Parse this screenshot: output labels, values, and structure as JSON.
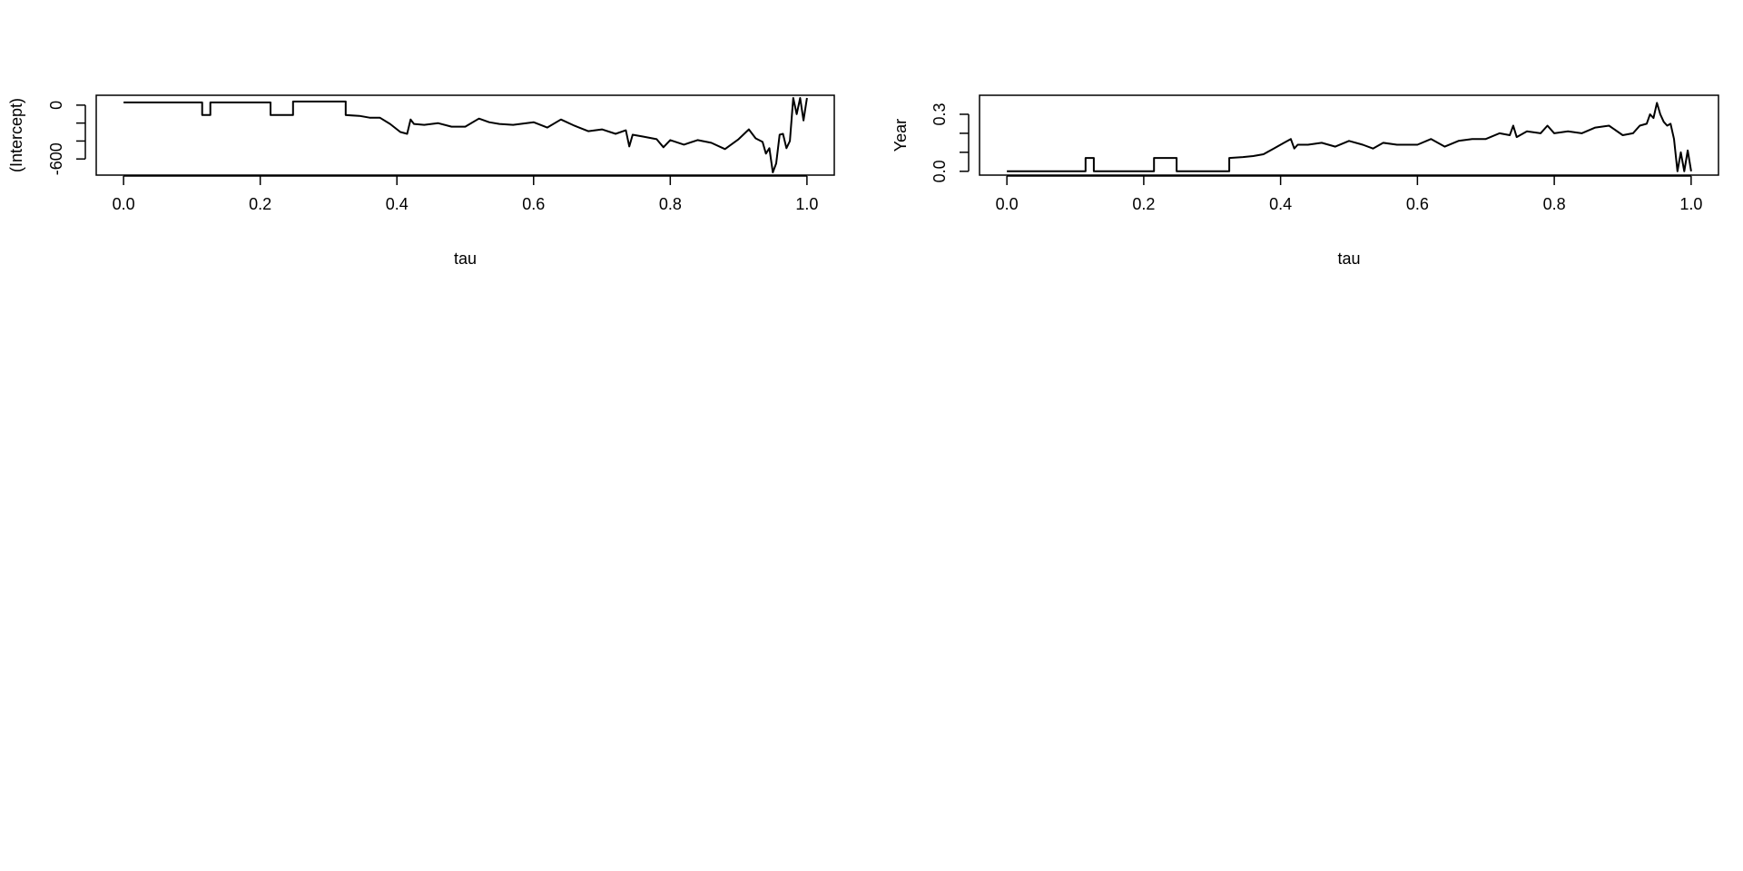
{
  "chart_data": [
    {
      "type": "line",
      "xlabel": "tau",
      "ylabel": "(Intercept)",
      "xlim": [
        -0.04,
        1.04
      ],
      "ylim": [
        -780,
        110
      ],
      "x_ticks": [
        0.0,
        0.2,
        0.4,
        0.6,
        0.8,
        1.0
      ],
      "x_tick_labels": [
        "0.0",
        "0.2",
        "0.4",
        "0.6",
        "0.8",
        "1.0"
      ],
      "y_ticks": [
        -600,
        -400,
        -200,
        0
      ],
      "y_tick_labels": [
        "-600",
        "",
        "",
        "0"
      ],
      "grid": false,
      "series": [
        {
          "x": [
            0.0,
            0.115,
            0.115,
            0.127,
            0.127,
            0.215,
            0.215,
            0.248,
            0.248,
            0.325,
            0.325,
            0.345,
            0.36,
            0.375,
            0.39,
            0.405,
            0.415,
            0.42,
            0.425,
            0.44,
            0.46,
            0.48,
            0.5,
            0.52,
            0.535,
            0.55,
            0.57,
            0.6,
            0.62,
            0.64,
            0.66,
            0.68,
            0.7,
            0.72,
            0.735,
            0.74,
            0.745,
            0.76,
            0.78,
            0.79,
            0.8,
            0.82,
            0.84,
            0.86,
            0.88,
            0.9,
            0.915,
            0.925,
            0.935,
            0.94,
            0.945,
            0.95,
            0.955,
            0.96,
            0.965,
            0.97,
            0.975,
            0.98,
            0.985,
            0.99,
            0.995,
            1.0
          ],
          "y": [
            30,
            30,
            -110,
            -110,
            30,
            30,
            -110,
            -110,
            40,
            40,
            -110,
            -120,
            -140,
            -140,
            -210,
            -300,
            -320,
            -160,
            -210,
            -220,
            -200,
            -240,
            -240,
            -150,
            -190,
            -210,
            -220,
            -190,
            -250,
            -160,
            -230,
            -290,
            -270,
            -320,
            -280,
            -460,
            -330,
            -350,
            -380,
            -470,
            -390,
            -440,
            -390,
            -420,
            -490,
            -380,
            -270,
            -370,
            -410,
            -540,
            -480,
            -750,
            -650,
            -330,
            -320,
            -480,
            -400,
            80,
            -100,
            80,
            -170,
            80
          ]
        }
      ]
    },
    {
      "type": "line",
      "xlabel": "tau",
      "ylabel": "Year",
      "xlim": [
        -0.04,
        1.04
      ],
      "ylim": [
        -0.02,
        0.4
      ],
      "x_ticks": [
        0.0,
        0.2,
        0.4,
        0.6,
        0.8,
        1.0
      ],
      "x_tick_labels": [
        "0.0",
        "0.2",
        "0.4",
        "0.6",
        "0.8",
        "1.0"
      ],
      "y_ticks": [
        0.0,
        0.1,
        0.2,
        0.3
      ],
      "y_tick_labels": [
        "0.0",
        "",
        "",
        "0.3"
      ],
      "grid": false,
      "series": [
        {
          "x": [
            0.0,
            0.115,
            0.115,
            0.127,
            0.127,
            0.215,
            0.215,
            0.248,
            0.248,
            0.325,
            0.325,
            0.345,
            0.36,
            0.375,
            0.39,
            0.405,
            0.415,
            0.42,
            0.425,
            0.44,
            0.46,
            0.48,
            0.5,
            0.52,
            0.535,
            0.55,
            0.57,
            0.6,
            0.62,
            0.64,
            0.66,
            0.68,
            0.7,
            0.72,
            0.735,
            0.74,
            0.745,
            0.76,
            0.78,
            0.79,
            0.8,
            0.82,
            0.84,
            0.86,
            0.88,
            0.9,
            0.915,
            0.925,
            0.935,
            0.94,
            0.945,
            0.95,
            0.955,
            0.96,
            0.965,
            0.97,
            0.975,
            0.98,
            0.985,
            0.99,
            0.995,
            1.0
          ],
          "y": [
            0.0,
            0.0,
            0.07,
            0.07,
            0.0,
            0.0,
            0.07,
            0.07,
            0.0,
            0.0,
            0.07,
            0.075,
            0.08,
            0.09,
            0.12,
            0.15,
            0.17,
            0.12,
            0.14,
            0.14,
            0.15,
            0.13,
            0.16,
            0.14,
            0.12,
            0.15,
            0.14,
            0.14,
            0.17,
            0.13,
            0.16,
            0.17,
            0.17,
            0.2,
            0.19,
            0.24,
            0.18,
            0.21,
            0.2,
            0.24,
            0.2,
            0.21,
            0.2,
            0.23,
            0.24,
            0.19,
            0.2,
            0.24,
            0.25,
            0.3,
            0.28,
            0.36,
            0.3,
            0.26,
            0.24,
            0.25,
            0.17,
            0.0,
            0.1,
            0.0,
            0.11,
            0.0
          ]
        }
      ]
    }
  ]
}
